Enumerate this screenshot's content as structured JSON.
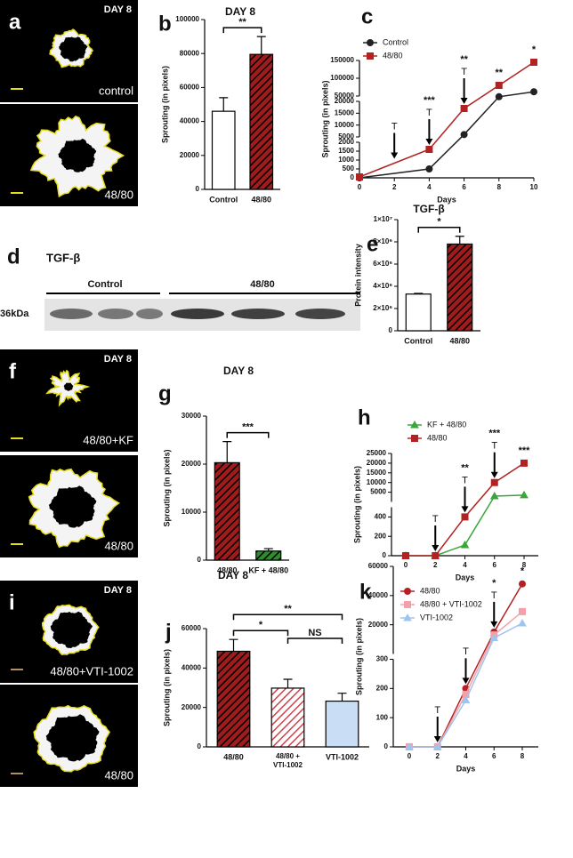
{
  "images": [
    {
      "panel": "a",
      "day": "DAY 8",
      "captions": [
        "control",
        "48/80"
      ]
    },
    {
      "panel": "f",
      "day": "DAY 8",
      "captions": [
        "48/80+KF",
        "48/80"
      ]
    },
    {
      "panel": "i",
      "day": "DAY 8",
      "captions": [
        "48/80+VTI-1002",
        "48/80"
      ]
    }
  ],
  "blot": {
    "panel": "d",
    "title": "TGF-β",
    "groups": [
      "Control",
      "48/80"
    ],
    "marker": "36kDa"
  },
  "chart_data": [
    {
      "panel": "b",
      "type": "bar",
      "title": "DAY 8",
      "y_label": "Sprouting (in pixels)",
      "categories": [
        "Control",
        "48/80"
      ],
      "values": [
        46000,
        79500
      ],
      "errors": [
        8000,
        10500
      ],
      "colors": [
        "#ffffff",
        "#a01c1c"
      ],
      "hatch_colors": [
        null,
        "#000000"
      ],
      "ylim": [
        0,
        100000
      ],
      "yticks": [
        0,
        20000,
        40000,
        60000,
        80000,
        100000
      ],
      "comparisons": [
        {
          "between": [
            0,
            1
          ],
          "label": "**"
        }
      ]
    },
    {
      "panel": "c",
      "type": "line",
      "y_label": "Sprouting (in pixels)",
      "x_label": "Days",
      "x": [
        0,
        4,
        6,
        8,
        10
      ],
      "series": [
        {
          "name": "Control",
          "color": "#222222",
          "marker": "circle",
          "values": [
            0,
            500,
            6000,
            48000,
            62000
          ]
        },
        {
          "name": "48/80",
          "color": "#b22222",
          "marker": "square",
          "values": [
            50,
            1600,
            17000,
            80000,
            145000
          ]
        }
      ],
      "xlim": [
        0,
        10
      ],
      "xticks": [
        0,
        2,
        4,
        6,
        8,
        10
      ],
      "ylim": [
        0,
        150000
      ],
      "ysegments": [
        [
          0,
          2000
        ],
        [
          5000,
          20000
        ],
        [
          50000,
          150000
        ]
      ],
      "yticks": [
        0,
        500,
        1000,
        1500,
        2000,
        5000,
        10000,
        15000,
        20000,
        50000,
        100000,
        150000
      ],
      "treatment_label": "T",
      "treatments": [
        2,
        4,
        6
      ],
      "significance": [
        {
          "x": 4,
          "label": "***"
        },
        {
          "x": 6,
          "label": "**"
        },
        {
          "x": 8,
          "label": "**"
        },
        {
          "x": 10,
          "label": "*"
        }
      ],
      "legend": "top-left"
    },
    {
      "panel": "e",
      "type": "bar",
      "title": "TGF-β",
      "y_label": "Protein intensity",
      "categories": [
        "Control",
        "48/80"
      ],
      "values": [
        3300000,
        7800000
      ],
      "errors": [
        60000,
        700000
      ],
      "colors": [
        "#ffffff",
        "#a01c1c"
      ],
      "hatch_colors": [
        null,
        "#000000"
      ],
      "ylim": [
        0,
        10000000
      ],
      "yticks": [
        0,
        {
          "value": 2000000,
          "label": "2×10⁶"
        },
        {
          "value": 4000000,
          "label": "4×10⁶"
        },
        {
          "value": 6000000,
          "label": "6×10⁶"
        },
        {
          "value": 8000000,
          "label": "8×10⁶"
        },
        {
          "value": 10000000,
          "label": "1×10⁷"
        }
      ],
      "comparisons": [
        {
          "between": [
            0,
            1
          ],
          "label": "*"
        }
      ]
    },
    {
      "panel": "g",
      "type": "bar",
      "title": "DAY 8",
      "y_label": "Sprouting (in pixels)",
      "categories": [
        "48/80",
        "KF + 48/80"
      ],
      "values": [
        20300,
        1900
      ],
      "errors": [
        4400,
        500
      ],
      "colors": [
        "#a01c1c",
        "#2e8b2e"
      ],
      "hatch_colors": [
        "#000000",
        "#000000"
      ],
      "ylim": [
        0,
        30000
      ],
      "yticks": [
        0,
        10000,
        20000,
        30000
      ],
      "comparisons": [
        {
          "between": [
            0,
            1
          ],
          "label": "***"
        }
      ]
    },
    {
      "panel": "h",
      "type": "line",
      "y_label": "Sprouting (in pixels)",
      "x_label": "Days",
      "x": [
        0,
        2,
        4,
        6,
        8
      ],
      "series": [
        {
          "name": "KF + 48/80",
          "color": "#3aa53a",
          "marker": "triangle",
          "values": [
            0,
            0,
            110,
            3000,
            3500
          ]
        },
        {
          "name": "48/80",
          "color": "#b22222",
          "marker": "square",
          "values": [
            0,
            0,
            400,
            10000,
            20000
          ]
        }
      ],
      "xlim": [
        0,
        8
      ],
      "xticks": [
        0,
        2,
        4,
        6,
        8
      ],
      "ylim": [
        0,
        25000
      ],
      "ysegments": [
        [
          0,
          500
        ],
        [
          0,
          25000
        ]
      ],
      "yticks": [
        0,
        200,
        400,
        5000,
        10000,
        15000,
        20000,
        25000
      ],
      "treatment_label": "T",
      "treatments": [
        2,
        4,
        6
      ],
      "significance": [
        {
          "x": 4,
          "label": "**"
        },
        {
          "x": 6,
          "label": "***"
        },
        {
          "x": 8,
          "label": "***"
        }
      ],
      "legend": "top-left"
    },
    {
      "panel": "j",
      "type": "bar",
      "title": "DAY 8",
      "y_label": "Sprouting (in pixels)",
      "categories": [
        "48/80",
        [
          "48/80 +",
          "VTI-1002"
        ],
        "VTI-1002"
      ],
      "values": [
        48500,
        29800,
        23200
      ],
      "errors": [
        6000,
        4500,
        4000
      ],
      "colors": [
        "#a01c1c",
        "#ffffff",
        "#c9ddf4"
      ],
      "hatch_colors": [
        "#000000",
        "#d0404a",
        null
      ],
      "ylim": [
        0,
        60000
      ],
      "yticks": [
        0,
        20000,
        40000,
        60000
      ],
      "comparisons": [
        {
          "between": [
            0,
            1
          ],
          "label": "*"
        },
        {
          "between": [
            0,
            2
          ],
          "label": "**"
        },
        {
          "between": [
            1,
            2
          ],
          "label": "NS"
        }
      ]
    },
    {
      "panel": "k",
      "type": "line",
      "y_label": "Sprouting (in pixels)",
      "x_label": "Days",
      "x": [
        0,
        2,
        4,
        6,
        8
      ],
      "series": [
        {
          "name": "48/80",
          "color": "#b22222",
          "marker": "circle",
          "values": [
            0,
            0,
            200,
            15000,
            48000
          ]
        },
        {
          "name": "48/80 + VTI-1002",
          "color": "#f4a0a8",
          "marker": "square",
          "values": [
            0,
            0,
            180,
            13000,
            29000
          ]
        },
        {
          "name": "VTI-1002",
          "color": "#9ec5f0",
          "marker": "triangle",
          "values": [
            0,
            0,
            160,
            11000,
            21000
          ]
        }
      ],
      "xlim": [
        0,
        8
      ],
      "xticks": [
        0,
        2,
        4,
        6,
        8
      ],
      "ylim": [
        0,
        60000
      ],
      "ysegments": [
        [
          0,
          300
        ],
        [
          0,
          60000
        ]
      ],
      "yticks": [
        0,
        100,
        200,
        300,
        20000,
        40000,
        60000
      ],
      "treatment_label": "T",
      "treatments": [
        2,
        4,
        6
      ],
      "significance": [
        {
          "x": 6,
          "label": "*"
        },
        {
          "x": 8,
          "label": "*"
        }
      ],
      "legend": "top-left"
    }
  ]
}
